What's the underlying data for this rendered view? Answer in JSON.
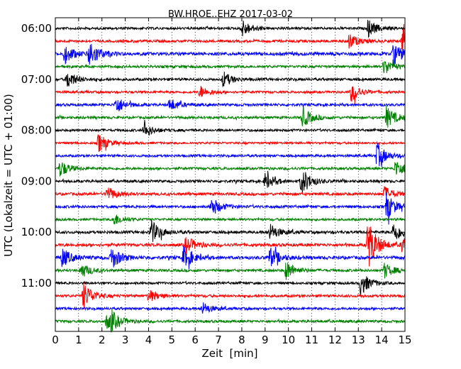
{
  "chart_data": {
    "type": "line",
    "title": "BW.HROE..EHZ 2017-03-02",
    "xlabel": "Zeit  [min]",
    "ylabel": "UTC (Lokalzeit = UTC + 01:00)",
    "xlim": [
      0,
      15
    ],
    "x_ticks": [
      "0",
      "1",
      "2",
      "3",
      "4",
      "5",
      "6",
      "7",
      "8",
      "9",
      "10",
      "11",
      "12",
      "13",
      "14",
      "15"
    ],
    "y_tick_labels": [
      "06:00",
      "07:00",
      "08:00",
      "09:00",
      "10:00",
      "11:00"
    ],
    "grid": "vertical dotted lines at each minute",
    "trace_interval_minutes": 15,
    "start_time": "06:00",
    "colors": [
      "#000000",
      "#ff0000",
      "#0000ff",
      "#008000"
    ],
    "traces": [
      {
        "start": "06:00",
        "color": "#000000",
        "amplitude": 0.55,
        "events": [
          {
            "t": 8.0,
            "amp": 1.4
          },
          {
            "t": 13.4,
            "amp": 1.4
          }
        ]
      },
      {
        "start": "06:15",
        "color": "#ff0000",
        "amplitude": 0.6,
        "events": [
          {
            "t": 12.6,
            "amp": 1.2
          },
          {
            "t": 14.9,
            "amp": 3.2
          }
        ]
      },
      {
        "start": "06:30",
        "color": "#0000ff",
        "amplitude": 0.75,
        "events": [
          {
            "t": 0.4,
            "amp": 1.5
          },
          {
            "t": 1.45,
            "amp": 2.2
          },
          {
            "t": 14.5,
            "amp": 1.8
          }
        ]
      },
      {
        "start": "06:45",
        "color": "#008000",
        "amplitude": 0.6,
        "events": [
          {
            "t": 14.1,
            "amp": 1.3
          }
        ]
      },
      {
        "start": "07:00",
        "color": "#000000",
        "amplitude": 0.6,
        "events": [
          {
            "t": 0.5,
            "amp": 1.5
          },
          {
            "t": 7.2,
            "amp": 1.2
          }
        ]
      },
      {
        "start": "07:15",
        "color": "#ff0000",
        "amplitude": 0.55,
        "events": [
          {
            "t": 6.2,
            "amp": 1.0
          },
          {
            "t": 12.7,
            "amp": 1.5
          }
        ]
      },
      {
        "start": "07:30",
        "color": "#0000ff",
        "amplitude": 0.6,
        "events": [
          {
            "t": 2.6,
            "amp": 1.4
          },
          {
            "t": 4.9,
            "amp": 1.0
          }
        ]
      },
      {
        "start": "07:45",
        "color": "#008000",
        "amplitude": 0.6,
        "events": [
          {
            "t": 10.6,
            "amp": 1.6
          },
          {
            "t": 14.2,
            "amp": 1.7
          }
        ]
      },
      {
        "start": "08:00",
        "color": "#000000",
        "amplitude": 0.55,
        "events": [
          {
            "t": 3.8,
            "amp": 1.2
          }
        ]
      },
      {
        "start": "08:15",
        "color": "#ff0000",
        "amplitude": 0.5,
        "events": [
          {
            "t": 1.85,
            "amp": 1.5
          }
        ]
      },
      {
        "start": "08:30",
        "color": "#0000ff",
        "amplitude": 0.55,
        "events": [
          {
            "t": 13.8,
            "amp": 2.0
          }
        ]
      },
      {
        "start": "08:45",
        "color": "#008000",
        "amplitude": 0.6,
        "events": [
          {
            "t": 0.2,
            "amp": 1.3
          },
          {
            "t": 14.6,
            "amp": 1.4
          }
        ]
      },
      {
        "start": "09:00",
        "color": "#000000",
        "amplitude": 0.6,
        "events": [
          {
            "t": 9.0,
            "amp": 1.3
          },
          {
            "t": 10.55,
            "amp": 2.2
          }
        ]
      },
      {
        "start": "09:15",
        "color": "#ff0000",
        "amplitude": 0.65,
        "events": [
          {
            "t": 2.2,
            "amp": 1.2
          },
          {
            "t": 14.1,
            "amp": 1.2
          }
        ]
      },
      {
        "start": "09:30",
        "color": "#0000ff",
        "amplitude": 0.6,
        "events": [
          {
            "t": 6.7,
            "amp": 1.5
          },
          {
            "t": 14.2,
            "amp": 2.1
          }
        ]
      },
      {
        "start": "09:45",
        "color": "#008000",
        "amplitude": 0.55,
        "events": [
          {
            "t": 2.5,
            "amp": 1.0
          }
        ]
      },
      {
        "start": "10:00",
        "color": "#000000",
        "amplitude": 0.65,
        "events": [
          {
            "t": 4.1,
            "amp": 1.9
          },
          {
            "t": 9.2,
            "amp": 1.3
          },
          {
            "t": 14.5,
            "amp": 1.7
          }
        ]
      },
      {
        "start": "10:15",
        "color": "#ff0000",
        "amplitude": 0.7,
        "events": [
          {
            "t": 5.6,
            "amp": 1.4
          },
          {
            "t": 13.4,
            "amp": 4.0
          },
          {
            "t": 14.9,
            "amp": 1.6
          }
        ]
      },
      {
        "start": "10:30",
        "color": "#0000ff",
        "amplitude": 0.75,
        "events": [
          {
            "t": 0.3,
            "amp": 1.5
          },
          {
            "t": 2.4,
            "amp": 1.8
          },
          {
            "t": 5.5,
            "amp": 1.6
          },
          {
            "t": 9.2,
            "amp": 1.6
          }
        ]
      },
      {
        "start": "10:45",
        "color": "#008000",
        "amplitude": 0.6,
        "events": [
          {
            "t": 1.1,
            "amp": 1.2
          },
          {
            "t": 9.9,
            "amp": 1.5
          },
          {
            "t": 14.1,
            "amp": 1.2
          }
        ]
      },
      {
        "start": "11:00",
        "color": "#000000",
        "amplitude": 0.55,
        "events": [
          {
            "t": 13.1,
            "amp": 1.9
          }
        ]
      },
      {
        "start": "11:15",
        "color": "#ff0000",
        "amplitude": 0.6,
        "events": [
          {
            "t": 1.2,
            "amp": 2.2
          },
          {
            "t": 4.0,
            "amp": 1.0
          }
        ]
      },
      {
        "start": "11:30",
        "color": "#0000ff",
        "amplitude": 0.55,
        "events": [
          {
            "t": 6.3,
            "amp": 1.0
          }
        ]
      },
      {
        "start": "11:45",
        "color": "#008000",
        "amplitude": 0.6,
        "events": [
          {
            "t": 2.2,
            "amp": 1.2
          },
          {
            "t": 2.4,
            "amp": 1.0
          }
        ]
      }
    ]
  }
}
